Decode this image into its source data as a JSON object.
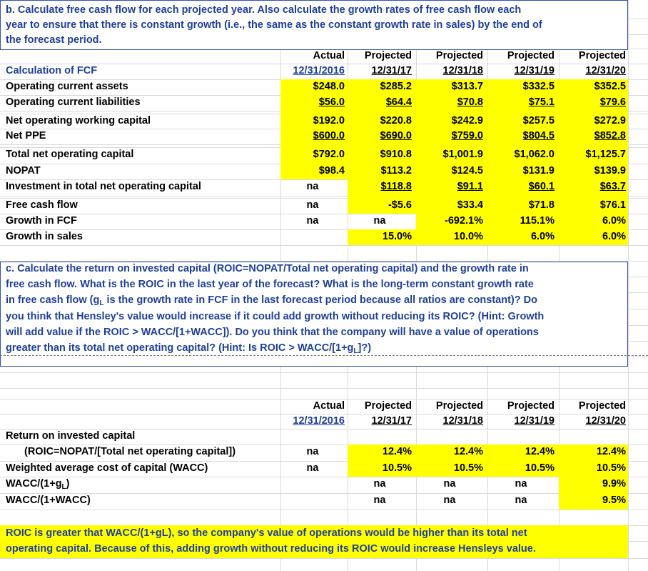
{
  "section_b": {
    "prompt": [
      "b.  Calculate free cash flow for each projected year.  Also calculate the growth rates of free cash flow each",
      "year to ensure that there is constant growth (i.e., the same as the constant growth rate in sales) by the end of",
      "the forecast period."
    ]
  },
  "fcf_table": {
    "header": {
      "row_label": "Calculation of FCF",
      "columns": [
        {
          "status": "Actual",
          "date": "12/31/2016"
        },
        {
          "status": "Projected",
          "date": "12/31/17"
        },
        {
          "status": "Projected",
          "date": "12/31/18"
        },
        {
          "status": "Projected",
          "date": "12/31/19"
        },
        {
          "status": "Projected",
          "date": "12/31/20"
        }
      ]
    },
    "rows": [
      {
        "label": "Operating current assets",
        "cells": [
          "$248.0",
          "$285.2",
          "$313.7",
          "$332.5",
          "$352.5"
        ]
      },
      {
        "label": "Operating current liabilities",
        "cells": [
          "$56.0",
          "$64.4",
          "$70.8",
          "$75.1",
          "$79.6"
        ]
      },
      {
        "label": "Net operating working capital",
        "cells": [
          "$192.0",
          "$220.8",
          "$242.9",
          "$257.5",
          "$272.9"
        ]
      },
      {
        "label": "Net PPE",
        "cells": [
          "$600.0",
          "$690.0",
          "$759.0",
          "$804.5",
          "$852.8"
        ]
      },
      {
        "label": "Total net operating capital",
        "cells": [
          "$792.0",
          "$910.8",
          "$1,001.9",
          "$1,062.0",
          "$1,125.7"
        ]
      },
      {
        "label": "NOPAT",
        "cells": [
          "$98.4",
          "$113.2",
          "$124.5",
          "$131.9",
          "$139.9"
        ]
      },
      {
        "label": "Investment in total net operating capital",
        "cells": [
          "na",
          "$118.8",
          "$91.1",
          "$60.1",
          "$63.7"
        ]
      },
      {
        "label": "Free cash flow",
        "cells": [
          "na",
          "-$5.6",
          "$33.4",
          "$71.8",
          "$76.1"
        ]
      },
      {
        "label": "Growth in FCF",
        "cells": [
          "na",
          "na",
          "-692.1%",
          "115.1%",
          "6.0%"
        ]
      },
      {
        "label": "Growth in sales",
        "cells": [
          null,
          "15.0%",
          "10.0%",
          "6.0%",
          "6.0%"
        ]
      }
    ]
  },
  "section_c": {
    "prompt": [
      [
        "c.  Calculate the return on invested capital (ROIC=NOPAT/Total net operating capital) and the growth rate in"
      ],
      [
        "free cash flow. What is the ROIC in the last year of the forecast? What is the long-term constant growth rate"
      ],
      [
        "in free cash flow (g",
        {
          "sub": "L"
        },
        " is the growth rate in FCF in the last forecast period because all ratios are constant)? Do"
      ],
      [
        "you think that Hensley's value would increase if it could add growth without reducing its ROIC? (Hint: Growth"
      ],
      [
        "will add value if the ROIC > WACC/[1+WACC]). Do you think that the company will have a value of operations"
      ],
      [
        "greater than its total net operating capital? (Hint: Is ROIC > WACC/[1+g",
        {
          "sub": "L"
        },
        "]?)"
      ]
    ]
  },
  "roic_table": {
    "header": {
      "columns": [
        {
          "status": "Actual",
          "date": "12/31/2016"
        },
        {
          "status": "Projected",
          "date": "12/31/17"
        },
        {
          "status": "Projected",
          "date": "12/31/18"
        },
        {
          "status": "Projected",
          "date": "12/31/19"
        },
        {
          "status": "Projected",
          "date": "12/31/20"
        }
      ]
    },
    "rows": [
      {
        "label": "Return on invested capital",
        "cells": [
          null,
          null,
          null,
          null,
          null
        ]
      },
      {
        "label": "(ROIC=NOPAT/[Total net operating capital])",
        "cells": [
          "na",
          "12.4%",
          "12.4%",
          "12.4%",
          "12.4%"
        ]
      },
      {
        "label": "Weighted average cost of capital (WACC)",
        "cells": [
          "na",
          "10.5%",
          "10.5%",
          "10.5%",
          "10.5%"
        ]
      },
      {
        "label": [
          "WACC/(1+g",
          {
            "sub": "L"
          },
          ")"
        ],
        "cells": [
          null,
          "na",
          "na",
          "na",
          "9.9%"
        ]
      },
      {
        "label": "WACC/(1+WACC)",
        "cells": [
          null,
          "na",
          "na",
          "na",
          "9.5%"
        ]
      }
    ]
  },
  "conclusion": [
    "ROIC is greater that WACC/(1+gL), so the company's value of operations would be higher than its total net",
    "operating capital. Because of this, adding growth without reducing its ROIC would increase Hensleys value."
  ]
}
